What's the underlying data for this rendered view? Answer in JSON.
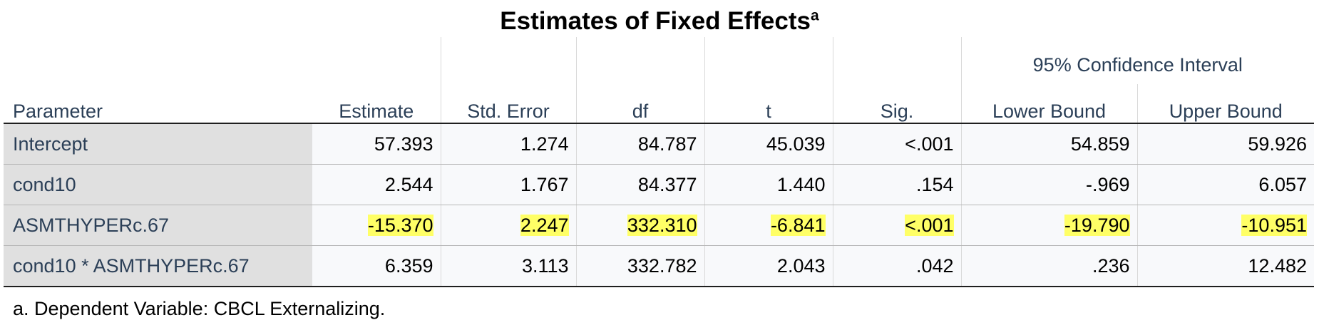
{
  "title": "Estimates of Fixed Effects",
  "title_footnote_marker": "a",
  "header": {
    "group_label": "95% Confidence Interval",
    "columns": [
      "Parameter",
      "Estimate",
      "Std. Error",
      "df",
      "t",
      "Sig.",
      "Lower Bound",
      "Upper Bound"
    ]
  },
  "rows": [
    {
      "parameter": "Intercept",
      "values": [
        "57.393",
        "1.274",
        "84.787",
        "45.039",
        "<.001",
        "54.859",
        "59.926"
      ],
      "highlighted": false
    },
    {
      "parameter": "cond10",
      "values": [
        "2.544",
        "1.767",
        "84.377",
        "1.440",
        ".154",
        "-.969",
        "6.057"
      ],
      "highlighted": false
    },
    {
      "parameter": "ASMTHYPERc.67",
      "values": [
        "-15.370",
        "2.247",
        "332.310",
        "-6.841",
        "<.001",
        "-19.790",
        "-10.951"
      ],
      "highlighted": true
    },
    {
      "parameter": "cond10 * ASMTHYPERc.67",
      "values": [
        "6.359",
        "3.113",
        "332.782",
        "2.043",
        ".042",
        ".236",
        "12.482"
      ],
      "highlighted": false
    }
  ],
  "footnote": "a. Dependent Variable: CBCL Externalizing.",
  "colors": {
    "highlight": "#ffff66",
    "header_text": "#2b3f57",
    "row_label_bg": "#e0e0e0"
  }
}
